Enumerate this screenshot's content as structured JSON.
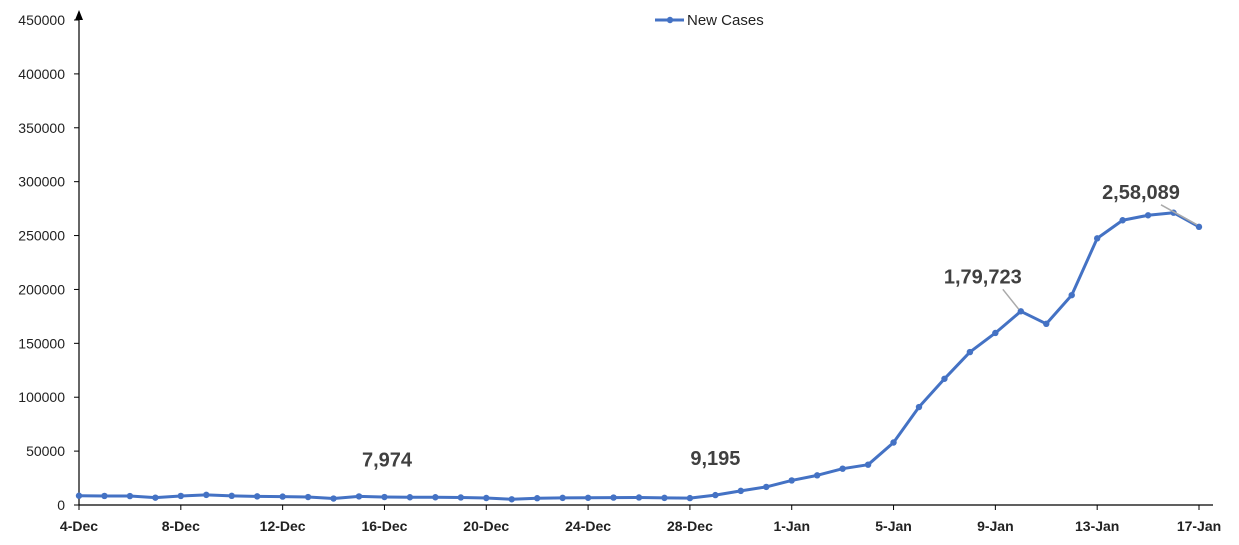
{
  "chart_data": {
    "type": "line",
    "title": "",
    "xlabel": "",
    "ylabel": "",
    "ylim": [
      0,
      450000
    ],
    "y_ticks": [
      "0",
      "50000",
      "100000",
      "150000",
      "200000",
      "250000",
      "300000",
      "350000",
      "400000",
      "450000"
    ],
    "x_tick_labels": [
      "4-Dec",
      "8-Dec",
      "12-Dec",
      "16-Dec",
      "20-Dec",
      "24-Dec",
      "28-Dec",
      "1-Jan",
      "5-Jan",
      "9-Jan",
      "13-Jan",
      "17-Jan"
    ],
    "legend": {
      "position": "top-center"
    },
    "grid": false,
    "color": "#4472C4",
    "series": [
      {
        "name": "New Cases",
        "x": [
          "4-Dec",
          "5-Dec",
          "6-Dec",
          "7-Dec",
          "8-Dec",
          "9-Dec",
          "10-Dec",
          "11-Dec",
          "12-Dec",
          "13-Dec",
          "14-Dec",
          "15-Dec",
          "16-Dec",
          "17-Dec",
          "18-Dec",
          "19-Dec",
          "20-Dec",
          "21-Dec",
          "22-Dec",
          "23-Dec",
          "24-Dec",
          "25-Dec",
          "26-Dec",
          "27-Dec",
          "28-Dec",
          "29-Dec",
          "30-Dec",
          "31-Dec",
          "1-Jan",
          "2-Jan",
          "3-Jan",
          "4-Jan",
          "5-Jan",
          "6-Jan",
          "7-Jan",
          "8-Jan",
          "9-Jan",
          "10-Jan",
          "11-Jan",
          "12-Jan",
          "13-Jan",
          "14-Jan",
          "15-Jan",
          "16-Jan",
          "17-Jan"
        ],
        "values": [
          8600,
          8400,
          8300,
          6800,
          8400,
          9400,
          8500,
          8000,
          7800,
          7400,
          6000,
          7974,
          7400,
          7200,
          7200,
          7000,
          6500,
          5300,
          6300,
          6600,
          6700,
          6900,
          7000,
          6600,
          6400,
          9195,
          13100,
          16800,
          22800,
          27500,
          33700,
          37400,
          58000,
          90900,
          117100,
          141900,
          159600,
          179723,
          168100,
          194700,
          247400,
          264200,
          268800,
          271200,
          258089
        ]
      }
    ],
    "annotations": [
      {
        "label": "7,974",
        "x": "15-Dec",
        "value": 7974
      },
      {
        "label": "9,195",
        "x": "29-Dec",
        "value": 9195
      },
      {
        "label": "1,79,723",
        "x": "10-Jan",
        "value": 179723
      },
      {
        "label": "2,58,089",
        "x": "17-Jan",
        "value": 258089
      }
    ]
  }
}
